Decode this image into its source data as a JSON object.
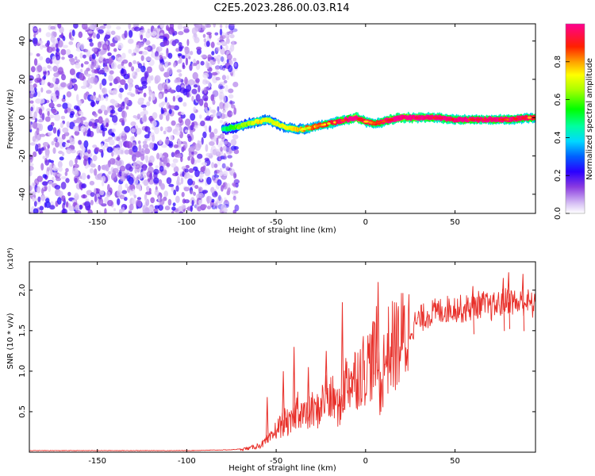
{
  "figure": {
    "title": "C2E5.2023.286.00.03.R14"
  },
  "chart_data": [
    {
      "type": "heatmap",
      "xlabel": "Height of straight line (km)",
      "ylabel": "Frequency (Hz)",
      "xlim": [
        -188,
        95
      ],
      "ylim": [
        -50,
        49
      ],
      "xticks": [
        -150,
        -100,
        -50,
        0,
        50
      ],
      "yticks": [
        -40,
        -20,
        0,
        20,
        40
      ],
      "xtick_labels": [
        "-150",
        "-100",
        "-50",
        "0",
        "50"
      ],
      "ytick_labels": [
        "-40",
        "-20",
        "0",
        "20",
        "40"
      ],
      "noise_region": {
        "x_range": [
          -188,
          -72
        ],
        "y_range": [
          -50,
          49
        ],
        "colormap_range": [
          0.0,
          0.25
        ]
      },
      "signal_track": {
        "x": [
          -80,
          -72,
          -65,
          -60,
          -55,
          -50,
          -45,
          -40,
          -35,
          -30,
          -25,
          -20,
          -15,
          -10,
          -5,
          0,
          5,
          10,
          15,
          20,
          30,
          40,
          50,
          60,
          70,
          80,
          90,
          95
        ],
        "frequency": [
          -6,
          -5,
          -3,
          -2,
          -1,
          -3,
          -5,
          -6,
          -6,
          -5,
          -4,
          -3,
          -2,
          -1,
          0,
          -2,
          -3,
          -2,
          -1,
          0,
          0,
          0,
          -1,
          -1,
          -1,
          -1,
          0,
          0
        ],
        "amplitude": [
          0.25,
          0.4,
          0.45,
          0.55,
          0.5,
          0.5,
          0.5,
          0.55,
          0.6,
          0.65,
          0.7,
          0.7,
          0.75,
          0.85,
          0.95,
          0.75,
          0.7,
          0.8,
          0.9,
          0.95,
          0.9,
          0.85,
          0.8,
          0.8,
          0.85,
          0.8,
          0.75,
          0.7
        ]
      },
      "colorbar": {
        "label": "Normalized spectral amplitude",
        "range": [
          0,
          1
        ],
        "ticks": [
          0.0,
          0.2,
          0.4,
          0.6,
          0.8
        ],
        "tick_labels": [
          "0.0",
          "0.2",
          "0.4",
          "0.6",
          "0.8"
        ]
      }
    },
    {
      "type": "line",
      "xlabel": "Height of straight line (km)",
      "ylabel": "SNR (10 * v/v)",
      "multiplier_label": "(x10⁴)",
      "xlim": [
        -188,
        95
      ],
      "ylim": [
        0,
        2.35
      ],
      "xticks": [
        -150,
        -100,
        -50,
        0,
        50
      ],
      "yticks": [
        0.5,
        1.0,
        1.5,
        2.0
      ],
      "xtick_labels": [
        "-150",
        "-100",
        "-50",
        "0",
        "50"
      ],
      "ytick_labels": [
        "0.5",
        "1.0",
        "1.5",
        "2.0"
      ],
      "color": "#e8302a",
      "series": [
        {
          "name": "SNR",
          "x": [
            -188,
            -150,
            -100,
            -75,
            -65,
            -58,
            -55,
            -52,
            -50,
            -47,
            -45,
            -42,
            -40,
            -38,
            -35,
            -33,
            -30,
            -28,
            -25,
            -22,
            -20,
            -18,
            -16,
            -14,
            -12,
            -10,
            -8,
            -5,
            -3,
            0,
            2,
            4,
            6,
            7,
            8,
            9,
            10,
            12,
            15,
            20,
            25,
            30,
            35,
            40,
            45,
            50,
            55,
            60,
            65,
            70,
            75,
            80,
            85,
            90,
            95
          ],
          "values": [
            0.02,
            0.02,
            0.02,
            0.03,
            0.05,
            0.1,
            0.15,
            0.2,
            0.3,
            0.35,
            0.4,
            0.35,
            0.45,
            0.6,
            0.5,
            0.45,
            0.55,
            0.5,
            0.6,
            0.75,
            0.65,
            0.7,
            0.6,
            0.55,
            0.85,
            0.95,
            0.9,
            1.0,
            1.05,
            1.1,
            1.15,
            1.2,
            1.3,
            1.1,
            0.8,
            0.9,
            1.1,
            1.3,
            1.35,
            1.45,
            1.55,
            1.65,
            1.72,
            1.75,
            1.78,
            1.8,
            1.78,
            1.82,
            1.85,
            1.8,
            1.85,
            1.9,
            1.85,
            1.88,
            1.8
          ]
        }
      ],
      "spikes": [
        {
          "x": -55,
          "value": 0.68
        },
        {
          "x": -46,
          "value": 1.0
        },
        {
          "x": -40,
          "value": 1.3
        },
        {
          "x": -32,
          "value": 1.05
        },
        {
          "x": -22,
          "value": 1.25
        },
        {
          "x": -13,
          "value": 1.85
        },
        {
          "x": -8,
          "value": 1.0
        },
        {
          "x": 4,
          "value": 1.6
        },
        {
          "x": 7,
          "value": 2.1
        },
        {
          "x": 60,
          "value": 2.05
        },
        {
          "x": 77,
          "value": 2.15
        },
        {
          "x": 80,
          "value": 2.22
        },
        {
          "x": 88,
          "value": 2.2
        }
      ]
    }
  ]
}
